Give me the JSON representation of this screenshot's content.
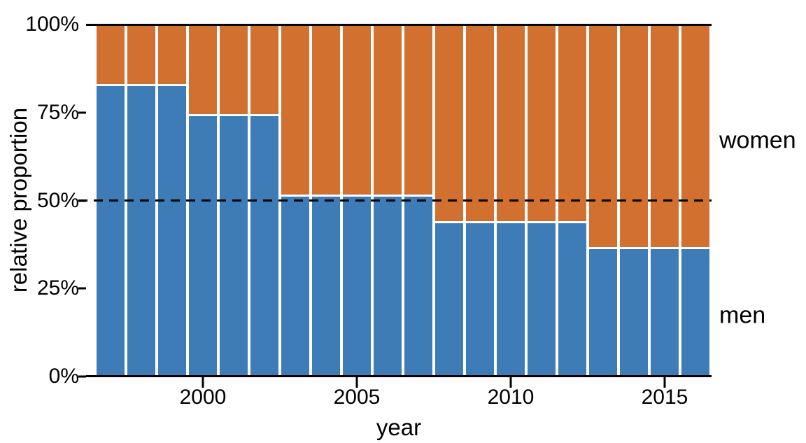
{
  "labels": {
    "ylabel": "relative proportion",
    "xlabel": "year",
    "women": "women",
    "men": "men"
  },
  "colors": {
    "men_blue": "#3D7CB6",
    "women_orange": "#D2702F",
    "axis_black": "#000000",
    "background": "#FFFFFF"
  },
  "chart_data": {
    "type": "bar",
    "subtype": "stacked_percentage",
    "title": "",
    "xlabel": "year",
    "ylabel": "relative proportion",
    "x": [
      1997,
      1998,
      1999,
      2000,
      2001,
      2002,
      2003,
      2004,
      2005,
      2006,
      2007,
      2008,
      2009,
      2010,
      2011,
      2012,
      2013,
      2014,
      2015,
      2016
    ],
    "series": [
      {
        "name": "men",
        "color": "#3D7CB6",
        "values": [
          82.9,
          82.9,
          82.9,
          74.3,
          74.3,
          74.3,
          51.2,
          51.2,
          51.2,
          51.2,
          51.2,
          43.8,
          43.8,
          43.8,
          43.8,
          43.8,
          36.3,
          36.3,
          36.3,
          36.3
        ]
      },
      {
        "name": "women",
        "color": "#D2702F",
        "values": [
          17.1,
          17.1,
          17.1,
          25.7,
          25.7,
          25.7,
          48.8,
          48.8,
          48.8,
          48.8,
          48.8,
          56.2,
          56.2,
          56.2,
          56.2,
          56.2,
          63.7,
          63.7,
          63.7,
          63.7
        ]
      }
    ],
    "stack_order_bottom_to_top": [
      "men",
      "women"
    ],
    "ylim": [
      0,
      100
    ],
    "y_ticks": {
      "values": [
        100,
        75,
        50,
        25,
        0
      ],
      "labels": [
        "100%",
        "75%",
        "50%",
        "25%",
        "0%"
      ]
    },
    "x_ticks": {
      "values": [
        2000,
        2005,
        2010,
        2015
      ],
      "labels": [
        "2000",
        "2005",
        "2010",
        "2015"
      ]
    },
    "grid": false,
    "legend_position": "direct labels right of plot (women, men)",
    "annotations": [
      {
        "type": "horizontal_dashed_line",
        "y": 50
      }
    ]
  }
}
